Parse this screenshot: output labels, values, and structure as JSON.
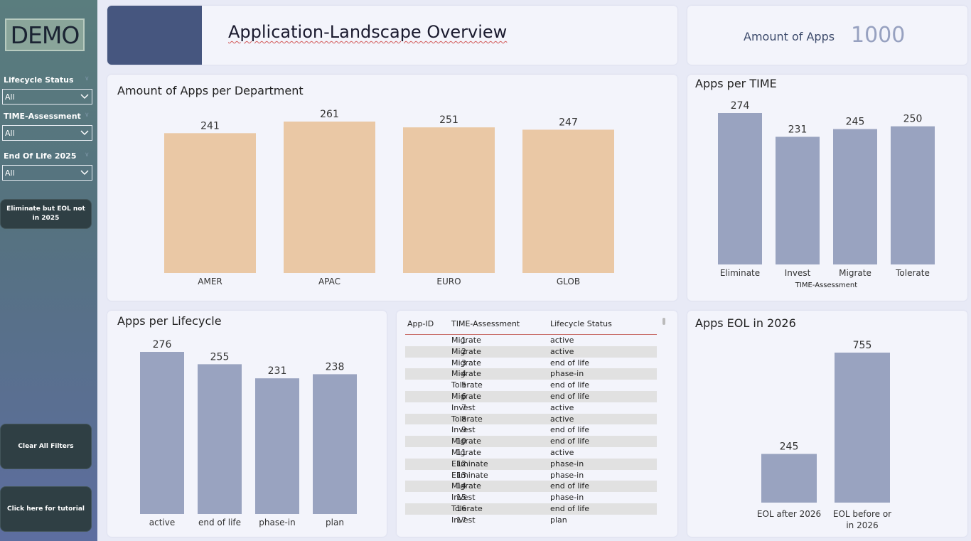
{
  "sidebar": {
    "logo_text": "DEMO",
    "filters": [
      {
        "label": "Lifecycle Status",
        "value": "All"
      },
      {
        "label": "TIME-Assessment",
        "value": "All"
      },
      {
        "label": "End Of Life 2025",
        "value": "All"
      }
    ],
    "buttons": {
      "eliminate": "Eliminate but EOL not in 2025",
      "clear": "Clear All Filters",
      "tutorial": "Click here for tutorial"
    }
  },
  "header": {
    "title": "Application-Landscape Overview"
  },
  "kpi": {
    "label": "Amount of Apps",
    "value": "1000"
  },
  "colors": {
    "peach_bar": "#eac8a5",
    "slate_bar": "#99a3c0",
    "title_block": "#46567f"
  },
  "chart_data": [
    {
      "id": "dept",
      "type": "bar",
      "title": "Amount of Apps per Department",
      "xlabel": "",
      "categories": [
        "AMER",
        "APAC",
        "EURO",
        "GLOB"
      ],
      "values": [
        241,
        261,
        251,
        247
      ],
      "color": "#eac8a5",
      "data_labels": true
    },
    {
      "id": "time",
      "type": "bar",
      "title": "Apps per TIME",
      "xlabel": "TIME-Assessment",
      "categories": [
        "Eliminate",
        "Invest",
        "Migrate",
        "Tolerate"
      ],
      "values": [
        274,
        231,
        245,
        250
      ],
      "color": "#99a3c0",
      "data_labels": true
    },
    {
      "id": "life",
      "type": "bar",
      "title": "Apps per Lifecycle",
      "xlabel": "",
      "categories": [
        "active",
        "end of life",
        "phase-in",
        "plan"
      ],
      "values": [
        276,
        255,
        231,
        238
      ],
      "color": "#99a3c0",
      "data_labels": true
    },
    {
      "id": "eol",
      "type": "bar",
      "title": "Apps EOL in 2026",
      "xlabel": "",
      "categories": [
        [
          "EOL after 2026"
        ],
        [
          "EOL before or",
          "in 2026"
        ]
      ],
      "values": [
        245,
        755
      ],
      "color": "#99a3c0",
      "data_labels": true
    },
    {
      "id": "apps_table",
      "type": "table",
      "columns": [
        "App-ID",
        "TIME-Assessment",
        "Lifecycle Status"
      ],
      "rows": [
        [
          1,
          "Migrate",
          "active"
        ],
        [
          2,
          "Migrate",
          "active"
        ],
        [
          3,
          "Migrate",
          "end of life"
        ],
        [
          4,
          "Migrate",
          "phase-in"
        ],
        [
          5,
          "Tolerate",
          "end of life"
        ],
        [
          6,
          "Migrate",
          "end of life"
        ],
        [
          7,
          "Invest",
          "active"
        ],
        [
          8,
          "Tolerate",
          "active"
        ],
        [
          9,
          "Invest",
          "end of life"
        ],
        [
          10,
          "Migrate",
          "end of life"
        ],
        [
          11,
          "Migrate",
          "active"
        ],
        [
          12,
          "Eliminate",
          "phase-in"
        ],
        [
          13,
          "Eliminate",
          "phase-in"
        ],
        [
          14,
          "Migrate",
          "end of life"
        ],
        [
          15,
          "Invest",
          "phase-in"
        ],
        [
          16,
          "Tolerate",
          "end of life"
        ],
        [
          17,
          "Invest",
          "plan"
        ]
      ]
    }
  ]
}
